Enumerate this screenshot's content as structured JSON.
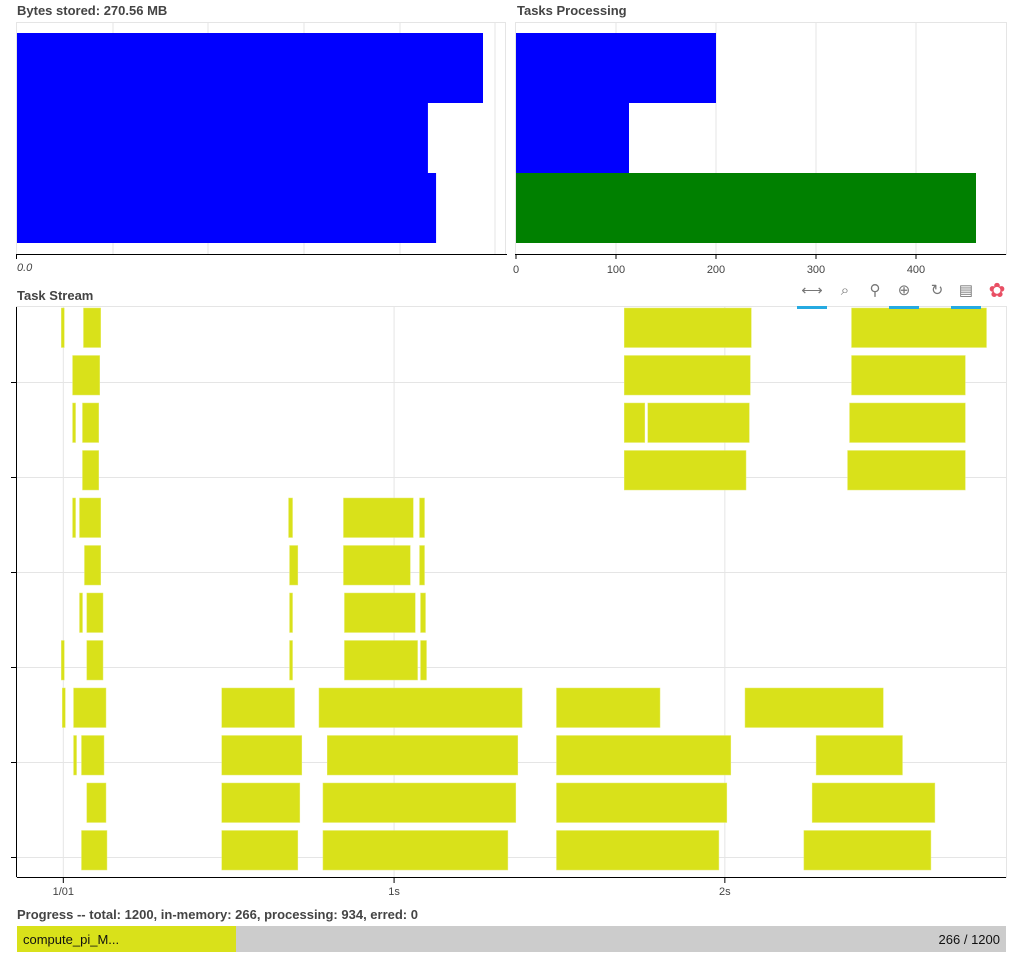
{
  "bytes_stored": {
    "title": "Bytes stored: 270.56 MB",
    "tick_label": "0.0",
    "chart_data": {
      "type": "bar",
      "orientation": "horizontal",
      "unit": "MB",
      "values": [
        97.3,
        85.8,
        87.5
      ],
      "color": "#0000ff"
    }
  },
  "tasks_processing": {
    "title": "Tasks Processing",
    "chart_data": {
      "type": "bar",
      "orientation": "horizontal",
      "xlim": [
        0,
        490
      ],
      "ticks": [
        "0",
        "100",
        "200",
        "300",
        "400"
      ],
      "values": [
        200,
        113,
        460
      ],
      "colors": [
        "#0000ff",
        "#0000ff",
        "#008000"
      ],
      "grid": true
    }
  },
  "task_stream": {
    "title": "Task Stream",
    "toolbar": [
      {
        "name": "xpan-tool",
        "glyph": "⟷",
        "active": true
      },
      {
        "name": "box-zoom-tool",
        "glyph": "⌕",
        "active": false
      },
      {
        "name": "wheel-zoom-tool",
        "glyph": "⚲",
        "active": false
      },
      {
        "name": "tap-tool",
        "glyph": "⊕",
        "active": true
      },
      {
        "name": "reset-tool",
        "glyph": "↻",
        "active": false
      },
      {
        "name": "hover-tool",
        "glyph": "▤",
        "active": true
      },
      {
        "name": "bokeh-logo",
        "glyph": "✿",
        "active": false
      }
    ],
    "chart_data": {
      "type": "timeline",
      "xlim": [
        -0.14,
        2.85
      ],
      "x_ticks": [
        {
          "value": 0,
          "label": "1/01"
        },
        {
          "value": 1,
          "label": "1s"
        },
        {
          "value": 2,
          "label": "2s"
        }
      ],
      "color": "#d9e11a",
      "rows": [
        [
          [
            -0.006,
            0.003
          ],
          [
            0.061,
            0.113
          ],
          [
            1.696,
            2.08
          ],
          [
            2.383,
            2.791
          ]
        ],
        [
          [
            0.028,
            0.11
          ],
          [
            1.696,
            2.077
          ],
          [
            2.383,
            2.727
          ]
        ],
        [
          [
            0.028,
            0.037
          ],
          [
            0.058,
            0.107
          ],
          [
            1.696,
            1.758
          ],
          [
            1.767,
            2.074
          ],
          [
            2.377,
            2.727
          ]
        ],
        [
          [
            0.058,
            0.107
          ],
          [
            1.696,
            2.064
          ],
          [
            2.371,
            2.727
          ]
        ],
        [
          [
            0.028,
            0.037
          ],
          [
            0.049,
            0.113
          ],
          [
            0.681,
            0.693
          ],
          [
            0.847,
            1.058
          ],
          [
            1.077,
            1.092
          ]
        ],
        [
          [
            0.064,
            0.113
          ],
          [
            0.684,
            0.709
          ],
          [
            0.847,
            1.049
          ],
          [
            1.077,
            1.092
          ]
        ],
        [
          [
            0.049,
            0.058
          ],
          [
            0.071,
            0.12
          ],
          [
            0.684,
            0.693
          ],
          [
            0.85,
            1.064
          ],
          [
            1.08,
            1.095
          ]
        ],
        [
          [
            -0.006,
            0.003
          ],
          [
            0.071,
            0.12
          ],
          [
            0.684,
            0.693
          ],
          [
            0.85,
            1.071
          ],
          [
            1.08,
            1.098
          ]
        ],
        [
          [
            -0.003,
            0.006
          ],
          [
            0.031,
            0.129
          ],
          [
            0.479,
            0.699
          ],
          [
            0.773,
            1.387
          ],
          [
            1.491,
            1.804
          ],
          [
            2.061,
            2.479
          ]
        ],
        [
          [
            0.031,
            0.04
          ],
          [
            0.055,
            0.123
          ],
          [
            0.479,
            0.721
          ],
          [
            0.798,
            1.374
          ],
          [
            1.491,
            2.018
          ],
          [
            2.276,
            2.537
          ]
        ],
        [
          [
            0.071,
            0.129
          ],
          [
            0.479,
            0.715
          ],
          [
            0.785,
            1.368
          ],
          [
            1.491,
            2.006
          ],
          [
            2.264,
            2.635
          ]
        ],
        [
          [
            0.055,
            0.132
          ],
          [
            0.479,
            0.709
          ],
          [
            0.785,
            1.344
          ],
          [
            1.491,
            1.982
          ],
          [
            2.239,
            2.623
          ]
        ]
      ]
    }
  },
  "progress": {
    "title": "Progress -- total: 1200, in-memory: 266, processing: 934, erred: 0",
    "task_name": "compute_pi_M...",
    "count_label": "266 / 1200",
    "done": 266,
    "total": 1200,
    "color": "#d9e11a"
  }
}
